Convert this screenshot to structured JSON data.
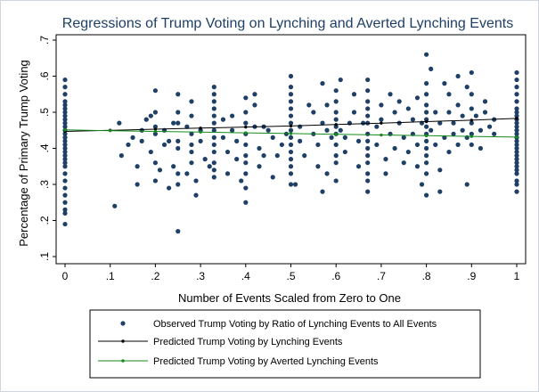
{
  "chart_data": {
    "type": "scatter",
    "title": "Regressions of Trump Voting on Lynching and Averted Lynching Events",
    "xlabel": "Number of Events Scaled from Zero to One",
    "ylabel": "Percentage of Primary Trump Voting",
    "xlim": [
      0,
      1
    ],
    "ylim": [
      0.1,
      0.7
    ],
    "xticks": [
      "0",
      ".1",
      ".2",
      ".3",
      ".4",
      ".5",
      ".6",
      ".7",
      ".8",
      ".9",
      "1"
    ],
    "yticks": [
      ".1",
      ".2",
      ".3",
      ".4",
      ".5",
      ".6",
      ".7"
    ],
    "grid": true,
    "legend_position": "bottom",
    "colors": {
      "observed": "#1e3f66",
      "lynching": "#000000",
      "averted": "#138a1c",
      "grid": "#e6ebef",
      "title": "#1e3f66"
    },
    "series": [
      {
        "name": "Observed Trump Voting by Ratio of Lynching Events to All Events",
        "kind": "scatter",
        "points": [
          [
            0,
            0.59
          ],
          [
            0,
            0.57
          ],
          [
            0,
            0.55
          ],
          [
            0,
            0.53
          ],
          [
            0,
            0.52
          ],
          [
            0,
            0.51
          ],
          [
            0,
            0.5
          ],
          [
            0,
            0.49
          ],
          [
            0,
            0.48
          ],
          [
            0,
            0.47
          ],
          [
            0,
            0.46
          ],
          [
            0,
            0.45
          ],
          [
            0,
            0.44
          ],
          [
            0,
            0.43
          ],
          [
            0,
            0.42
          ],
          [
            0,
            0.41
          ],
          [
            0,
            0.4
          ],
          [
            0,
            0.39
          ],
          [
            0,
            0.38
          ],
          [
            0,
            0.37
          ],
          [
            0,
            0.36
          ],
          [
            0,
            0.35
          ],
          [
            0,
            0.33
          ],
          [
            0,
            0.31
          ],
          [
            0,
            0.29
          ],
          [
            0,
            0.27
          ],
          [
            0,
            0.25
          ],
          [
            0,
            0.23
          ],
          [
            0,
            0.22
          ],
          [
            0,
            0.19
          ],
          [
            0.11,
            0.24
          ],
          [
            0.12,
            0.47
          ],
          [
            0.125,
            0.38
          ],
          [
            0.14,
            0.41
          ],
          [
            0.15,
            0.43
          ],
          [
            0.16,
            0.35
          ],
          [
            0.16,
            0.3
          ],
          [
            0.17,
            0.45
          ],
          [
            0.17,
            0.42
          ],
          [
            0.18,
            0.48
          ],
          [
            0.19,
            0.49
          ],
          [
            0.19,
            0.39
          ],
          [
            0.2,
            0.56
          ],
          [
            0.2,
            0.5
          ],
          [
            0.2,
            0.46
          ],
          [
            0.2,
            0.44
          ],
          [
            0.2,
            0.36
          ],
          [
            0.2,
            0.31
          ],
          [
            0.21,
            0.34
          ],
          [
            0.22,
            0.45
          ],
          [
            0.22,
            0.41
          ],
          [
            0.23,
            0.42
          ],
          [
            0.23,
            0.29
          ],
          [
            0.24,
            0.47
          ],
          [
            0.24,
            0.35
          ],
          [
            0.25,
            0.55
          ],
          [
            0.25,
            0.5
          ],
          [
            0.25,
            0.47
          ],
          [
            0.25,
            0.42
          ],
          [
            0.25,
            0.4
          ],
          [
            0.25,
            0.33
          ],
          [
            0.25,
            0.3
          ],
          [
            0.25,
            0.17
          ],
          [
            0.27,
            0.46
          ],
          [
            0.27,
            0.33
          ],
          [
            0.28,
            0.39
          ],
          [
            0.28,
            0.53
          ],
          [
            0.28,
            0.49
          ],
          [
            0.28,
            0.44
          ],
          [
            0.28,
            0.41
          ],
          [
            0.28,
            0.36
          ],
          [
            0.29,
            0.31
          ],
          [
            0.29,
            0.27
          ],
          [
            0.3,
            0.45
          ],
          [
            0.3,
            0.42
          ],
          [
            0.31,
            0.37
          ],
          [
            0.32,
            0.35
          ],
          [
            0.33,
            0.57
          ],
          [
            0.33,
            0.55
          ],
          [
            0.33,
            0.53
          ],
          [
            0.33,
            0.51
          ],
          [
            0.33,
            0.49
          ],
          [
            0.33,
            0.47
          ],
          [
            0.33,
            0.45
          ],
          [
            0.33,
            0.43
          ],
          [
            0.33,
            0.41
          ],
          [
            0.33,
            0.39
          ],
          [
            0.33,
            0.36
          ],
          [
            0.33,
            0.34
          ],
          [
            0.33,
            0.32
          ],
          [
            0.35,
            0.48
          ],
          [
            0.35,
            0.43
          ],
          [
            0.36,
            0.39
          ],
          [
            0.36,
            0.33
          ],
          [
            0.37,
            0.49
          ],
          [
            0.37,
            0.45
          ],
          [
            0.38,
            0.42
          ],
          [
            0.38,
            0.37
          ],
          [
            0.39,
            0.31
          ],
          [
            0.4,
            0.54
          ],
          [
            0.4,
            0.5
          ],
          [
            0.4,
            0.47
          ],
          [
            0.4,
            0.44
          ],
          [
            0.4,
            0.41
          ],
          [
            0.4,
            0.38
          ],
          [
            0.4,
            0.36
          ],
          [
            0.4,
            0.33
          ],
          [
            0.4,
            0.29
          ],
          [
            0.4,
            0.25
          ],
          [
            0.42,
            0.55
          ],
          [
            0.42,
            0.52
          ],
          [
            0.42,
            0.46
          ],
          [
            0.43,
            0.4
          ],
          [
            0.43,
            0.35
          ],
          [
            0.44,
            0.46
          ],
          [
            0.44,
            0.38
          ],
          [
            0.45,
            0.45
          ],
          [
            0.46,
            0.43
          ],
          [
            0.46,
            0.32
          ],
          [
            0.47,
            0.38
          ],
          [
            0.48,
            0.41
          ],
          [
            0.49,
            0.44
          ],
          [
            0.5,
            0.6
          ],
          [
            0.5,
            0.57
          ],
          [
            0.5,
            0.55
          ],
          [
            0.5,
            0.53
          ],
          [
            0.5,
            0.51
          ],
          [
            0.5,
            0.49
          ],
          [
            0.5,
            0.47
          ],
          [
            0.5,
            0.45
          ],
          [
            0.5,
            0.43
          ],
          [
            0.5,
            0.41
          ],
          [
            0.5,
            0.39
          ],
          [
            0.5,
            0.37
          ],
          [
            0.5,
            0.35
          ],
          [
            0.5,
            0.33
          ],
          [
            0.5,
            0.3
          ],
          [
            0.51,
            0.3
          ],
          [
            0.52,
            0.46
          ],
          [
            0.52,
            0.42
          ],
          [
            0.53,
            0.38
          ],
          [
            0.54,
            0.52
          ],
          [
            0.55,
            0.5
          ],
          [
            0.55,
            0.44
          ],
          [
            0.56,
            0.41
          ],
          [
            0.56,
            0.35
          ],
          [
            0.57,
            0.58
          ],
          [
            0.57,
            0.47
          ],
          [
            0.57,
            0.28
          ],
          [
            0.58,
            0.52
          ],
          [
            0.58,
            0.45
          ],
          [
            0.58,
            0.33
          ],
          [
            0.59,
            0.43
          ],
          [
            0.6,
            0.56
          ],
          [
            0.6,
            0.53
          ],
          [
            0.6,
            0.5
          ],
          [
            0.6,
            0.48
          ],
          [
            0.6,
            0.46
          ],
          [
            0.6,
            0.44
          ],
          [
            0.6,
            0.41
          ],
          [
            0.6,
            0.38
          ],
          [
            0.6,
            0.36
          ],
          [
            0.6,
            0.31
          ],
          [
            0.61,
            0.59
          ],
          [
            0.61,
            0.45
          ],
          [
            0.62,
            0.43
          ],
          [
            0.62,
            0.39
          ],
          [
            0.63,
            0.47
          ],
          [
            0.64,
            0.55
          ],
          [
            0.64,
            0.5
          ],
          [
            0.65,
            0.42
          ],
          [
            0.65,
            0.35
          ],
          [
            0.66,
            0.47
          ],
          [
            0.67,
            0.59
          ],
          [
            0.67,
            0.56
          ],
          [
            0.67,
            0.53
          ],
          [
            0.67,
            0.51
          ],
          [
            0.67,
            0.49
          ],
          [
            0.67,
            0.47
          ],
          [
            0.67,
            0.44
          ],
          [
            0.67,
            0.42
          ],
          [
            0.67,
            0.4
          ],
          [
            0.67,
            0.38
          ],
          [
            0.67,
            0.36
          ],
          [
            0.67,
            0.33
          ],
          [
            0.67,
            0.31
          ],
          [
            0.67,
            0.28
          ],
          [
            0.69,
            0.46
          ],
          [
            0.69,
            0.41
          ],
          [
            0.7,
            0.52
          ],
          [
            0.7,
            0.48
          ],
          [
            0.71,
            0.37
          ],
          [
            0.71,
            0.33
          ],
          [
            0.72,
            0.55
          ],
          [
            0.72,
            0.44
          ],
          [
            0.73,
            0.5
          ],
          [
            0.73,
            0.4
          ],
          [
            0.74,
            0.53
          ],
          [
            0.74,
            0.47
          ],
          [
            0.75,
            0.43
          ],
          [
            0.75,
            0.36
          ],
          [
            0.76,
            0.51
          ],
          [
            0.76,
            0.39
          ],
          [
            0.77,
            0.48
          ],
          [
            0.77,
            0.44
          ],
          [
            0.78,
            0.54
          ],
          [
            0.78,
            0.41
          ],
          [
            0.78,
            0.35
          ],
          [
            0.79,
            0.47
          ],
          [
            0.79,
            0.3
          ],
          [
            0.8,
            0.66
          ],
          [
            0.8,
            0.58
          ],
          [
            0.8,
            0.55
          ],
          [
            0.8,
            0.52
          ],
          [
            0.8,
            0.5
          ],
          [
            0.8,
            0.48
          ],
          [
            0.8,
            0.46
          ],
          [
            0.8,
            0.44
          ],
          [
            0.8,
            0.42
          ],
          [
            0.8,
            0.4
          ],
          [
            0.8,
            0.38
          ],
          [
            0.8,
            0.36
          ],
          [
            0.8,
            0.33
          ],
          [
            0.8,
            0.27
          ],
          [
            0.81,
            0.62
          ],
          [
            0.81,
            0.45
          ],
          [
            0.82,
            0.41
          ],
          [
            0.82,
            0.5
          ],
          [
            0.83,
            0.47
          ],
          [
            0.83,
            0.34
          ],
          [
            0.83,
            0.28
          ],
          [
            0.84,
            0.58
          ],
          [
            0.84,
            0.43
          ],
          [
            0.85,
            0.55
          ],
          [
            0.85,
            0.5
          ],
          [
            0.85,
            0.39
          ],
          [
            0.86,
            0.47
          ],
          [
            0.86,
            0.44
          ],
          [
            0.87,
            0.6
          ],
          [
            0.87,
            0.52
          ],
          [
            0.87,
            0.41
          ],
          [
            0.88,
            0.49
          ],
          [
            0.88,
            0.45
          ],
          [
            0.89,
            0.57
          ],
          [
            0.89,
            0.43
          ],
          [
            0.89,
            0.3
          ],
          [
            0.9,
            0.61
          ],
          [
            0.9,
            0.55
          ],
          [
            0.9,
            0.51
          ],
          [
            0.9,
            0.47
          ],
          [
            0.9,
            0.44
          ],
          [
            0.9,
            0.41
          ],
          [
            0.91,
            0.49
          ],
          [
            0.92,
            0.45
          ],
          [
            0.92,
            0.4
          ],
          [
            0.93,
            0.53
          ],
          [
            0.93,
            0.5
          ],
          [
            0.94,
            0.46
          ],
          [
            0.95,
            0.48
          ],
          [
            0.95,
            0.44
          ],
          [
            1,
            0.61
          ],
          [
            1,
            0.59
          ],
          [
            1,
            0.57
          ],
          [
            1,
            0.55
          ],
          [
            1,
            0.53
          ],
          [
            1,
            0.51
          ],
          [
            1,
            0.5
          ],
          [
            1,
            0.49
          ],
          [
            1,
            0.48
          ],
          [
            1,
            0.47
          ],
          [
            1,
            0.46
          ],
          [
            1,
            0.45
          ],
          [
            1,
            0.44
          ],
          [
            1,
            0.43
          ],
          [
            1,
            0.42
          ],
          [
            1,
            0.41
          ],
          [
            1,
            0.4
          ],
          [
            1,
            0.39
          ],
          [
            1,
            0.38
          ],
          [
            1,
            0.37
          ],
          [
            1,
            0.36
          ],
          [
            1,
            0.35
          ],
          [
            1,
            0.34
          ],
          [
            1,
            0.33
          ],
          [
            1,
            0.31
          ],
          [
            1,
            0.3
          ],
          [
            1,
            0.28
          ]
        ]
      },
      {
        "name": "Predicted Trump Voting by Lynching Events",
        "kind": "line-markers",
        "points": [
          [
            0,
            0.447
          ],
          [
            0.1,
            0.45
          ],
          [
            0.2,
            0.453
          ],
          [
            0.3,
            0.456
          ],
          [
            0.4,
            0.459
          ],
          [
            0.5,
            0.462
          ],
          [
            0.6,
            0.466
          ],
          [
            0.7,
            0.47
          ],
          [
            0.8,
            0.474
          ],
          [
            0.9,
            0.478
          ],
          [
            1,
            0.483
          ]
        ]
      },
      {
        "name": "Predicted Trump Voting by Averted Lynching Events",
        "kind": "line-markers",
        "points": [
          [
            0,
            0.451
          ],
          [
            0.1,
            0.449
          ],
          [
            0.2,
            0.447
          ],
          [
            0.3,
            0.445
          ],
          [
            0.4,
            0.443
          ],
          [
            0.5,
            0.441
          ],
          [
            0.6,
            0.439
          ],
          [
            0.7,
            0.437
          ],
          [
            0.8,
            0.435
          ],
          [
            0.9,
            0.433
          ],
          [
            1,
            0.431
          ]
        ]
      }
    ]
  }
}
